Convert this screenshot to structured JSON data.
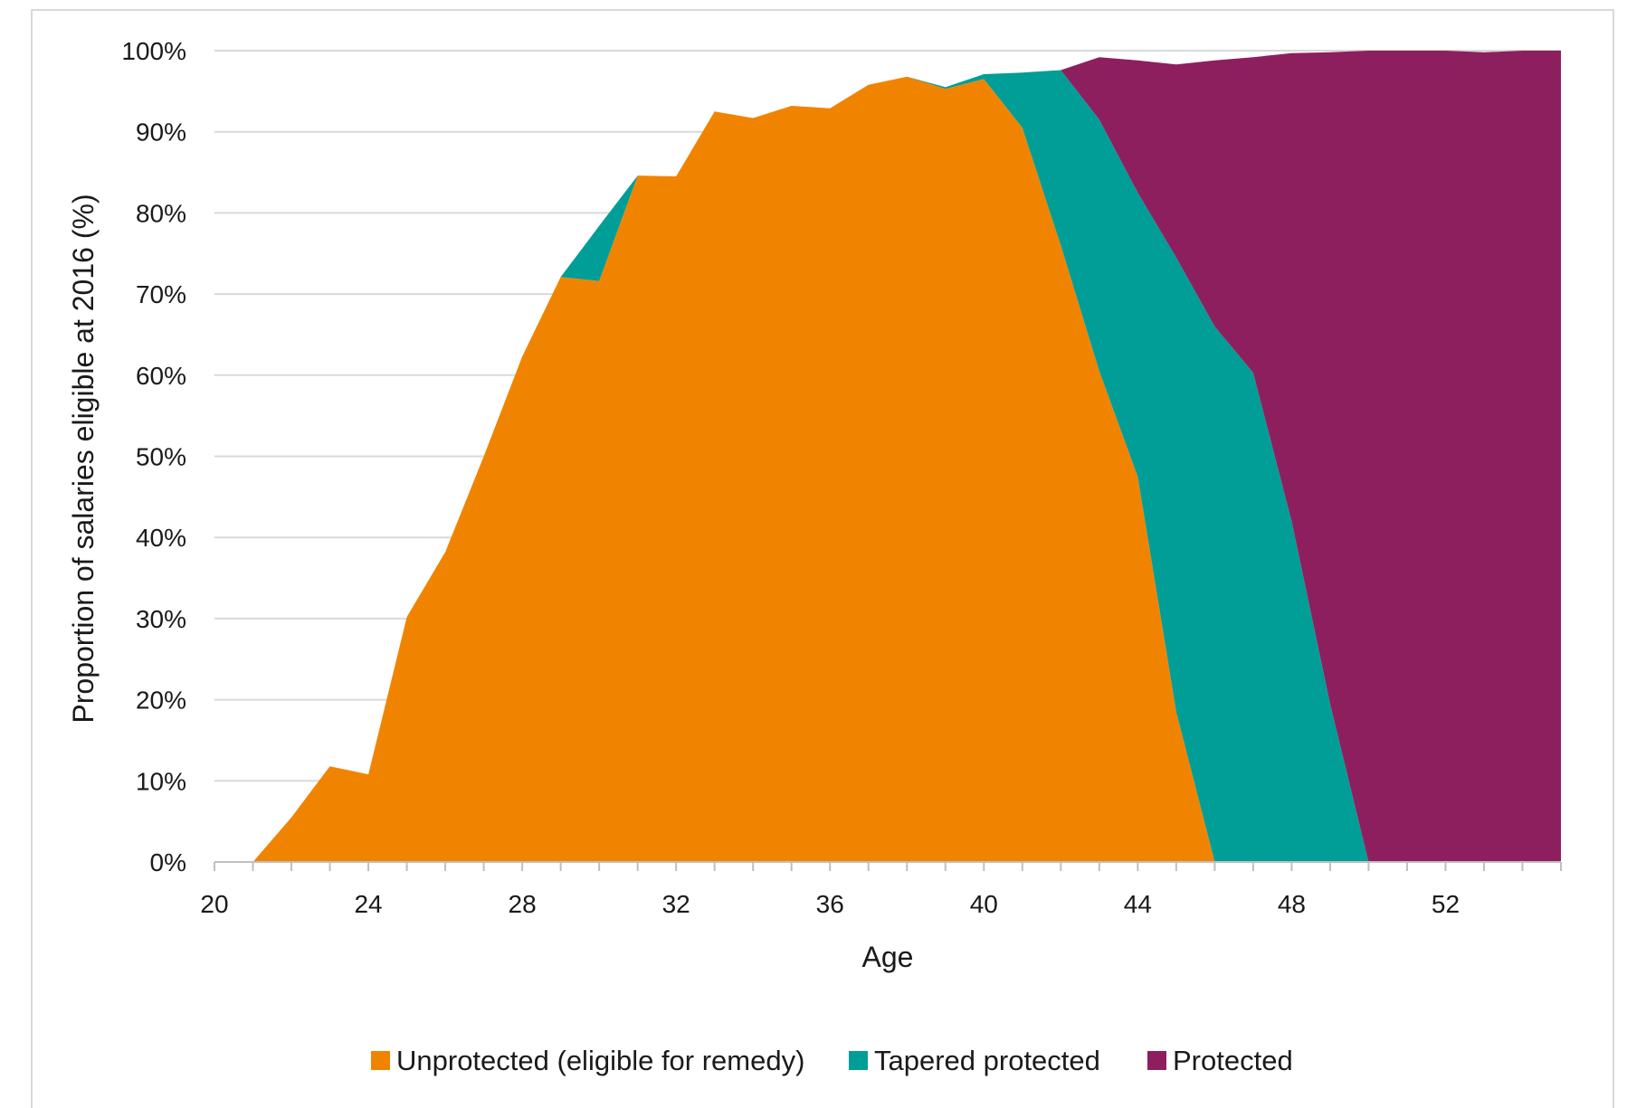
{
  "chart_data": {
    "type": "area",
    "stacked": true,
    "xlabel": "Age",
    "ylabel": "Proportion of salaries eligible at 2016 (%)",
    "xlim": [
      20,
      55
    ],
    "ylim": [
      0,
      100
    ],
    "x_ticks": [
      20,
      24,
      28,
      32,
      36,
      40,
      44,
      48,
      52
    ],
    "y_ticks": [
      0,
      10,
      20,
      30,
      40,
      50,
      60,
      70,
      80,
      90,
      100
    ],
    "y_tick_labels": [
      "0%",
      "10%",
      "20%",
      "30%",
      "40%",
      "50%",
      "60%",
      "70%",
      "80%",
      "90%",
      "100%"
    ],
    "grid": "horizontal",
    "legend_position": "bottom",
    "x": [
      21,
      22,
      23,
      24,
      25,
      26,
      27,
      28,
      29,
      30,
      31,
      32,
      33,
      34,
      35,
      36,
      37,
      38,
      39,
      40,
      41,
      42,
      43,
      44,
      45,
      46,
      47,
      48,
      49,
      50,
      51,
      52,
      53,
      54,
      55
    ],
    "series": [
      {
        "name": "Unprotected (eligible for remedy)",
        "color": "#f08400",
        "values": [
          0,
          5.5,
          11.8,
          10.8,
          30.2,
          38.2,
          50,
          62.3,
          72.1,
          71.6,
          84.6,
          84.5,
          92.5,
          91.7,
          93.2,
          92.9,
          95.8,
          96.8,
          95.3,
          96.5,
          90.5,
          76,
          60.5,
          47.5,
          18.5,
          0,
          0,
          0,
          0,
          0,
          0,
          0,
          0,
          0,
          0
        ]
      },
      {
        "name": "Tapered protected",
        "color": "#009e96",
        "values": [
          0,
          0,
          0,
          0,
          0,
          0,
          0,
          0,
          0,
          6.8,
          0,
          0,
          0,
          0,
          0,
          0,
          0,
          0,
          0.2,
          0.6,
          6.8,
          21.6,
          31,
          35,
          56,
          66,
          60.3,
          42,
          19.5,
          0,
          0,
          0,
          0,
          0,
          0
        ]
      },
      {
        "name": "Protected",
        "color": "#8e1f5e",
        "values": [
          0,
          0,
          0,
          0,
          0,
          0,
          0,
          0,
          0,
          0,
          0,
          0,
          0,
          0,
          0,
          0,
          0,
          0,
          0,
          0,
          0,
          0,
          7.7,
          16.3,
          23.8,
          32.8,
          38.9,
          57.7,
          80.3,
          100,
          100,
          100,
          99.8,
          100,
          100
        ]
      }
    ]
  }
}
